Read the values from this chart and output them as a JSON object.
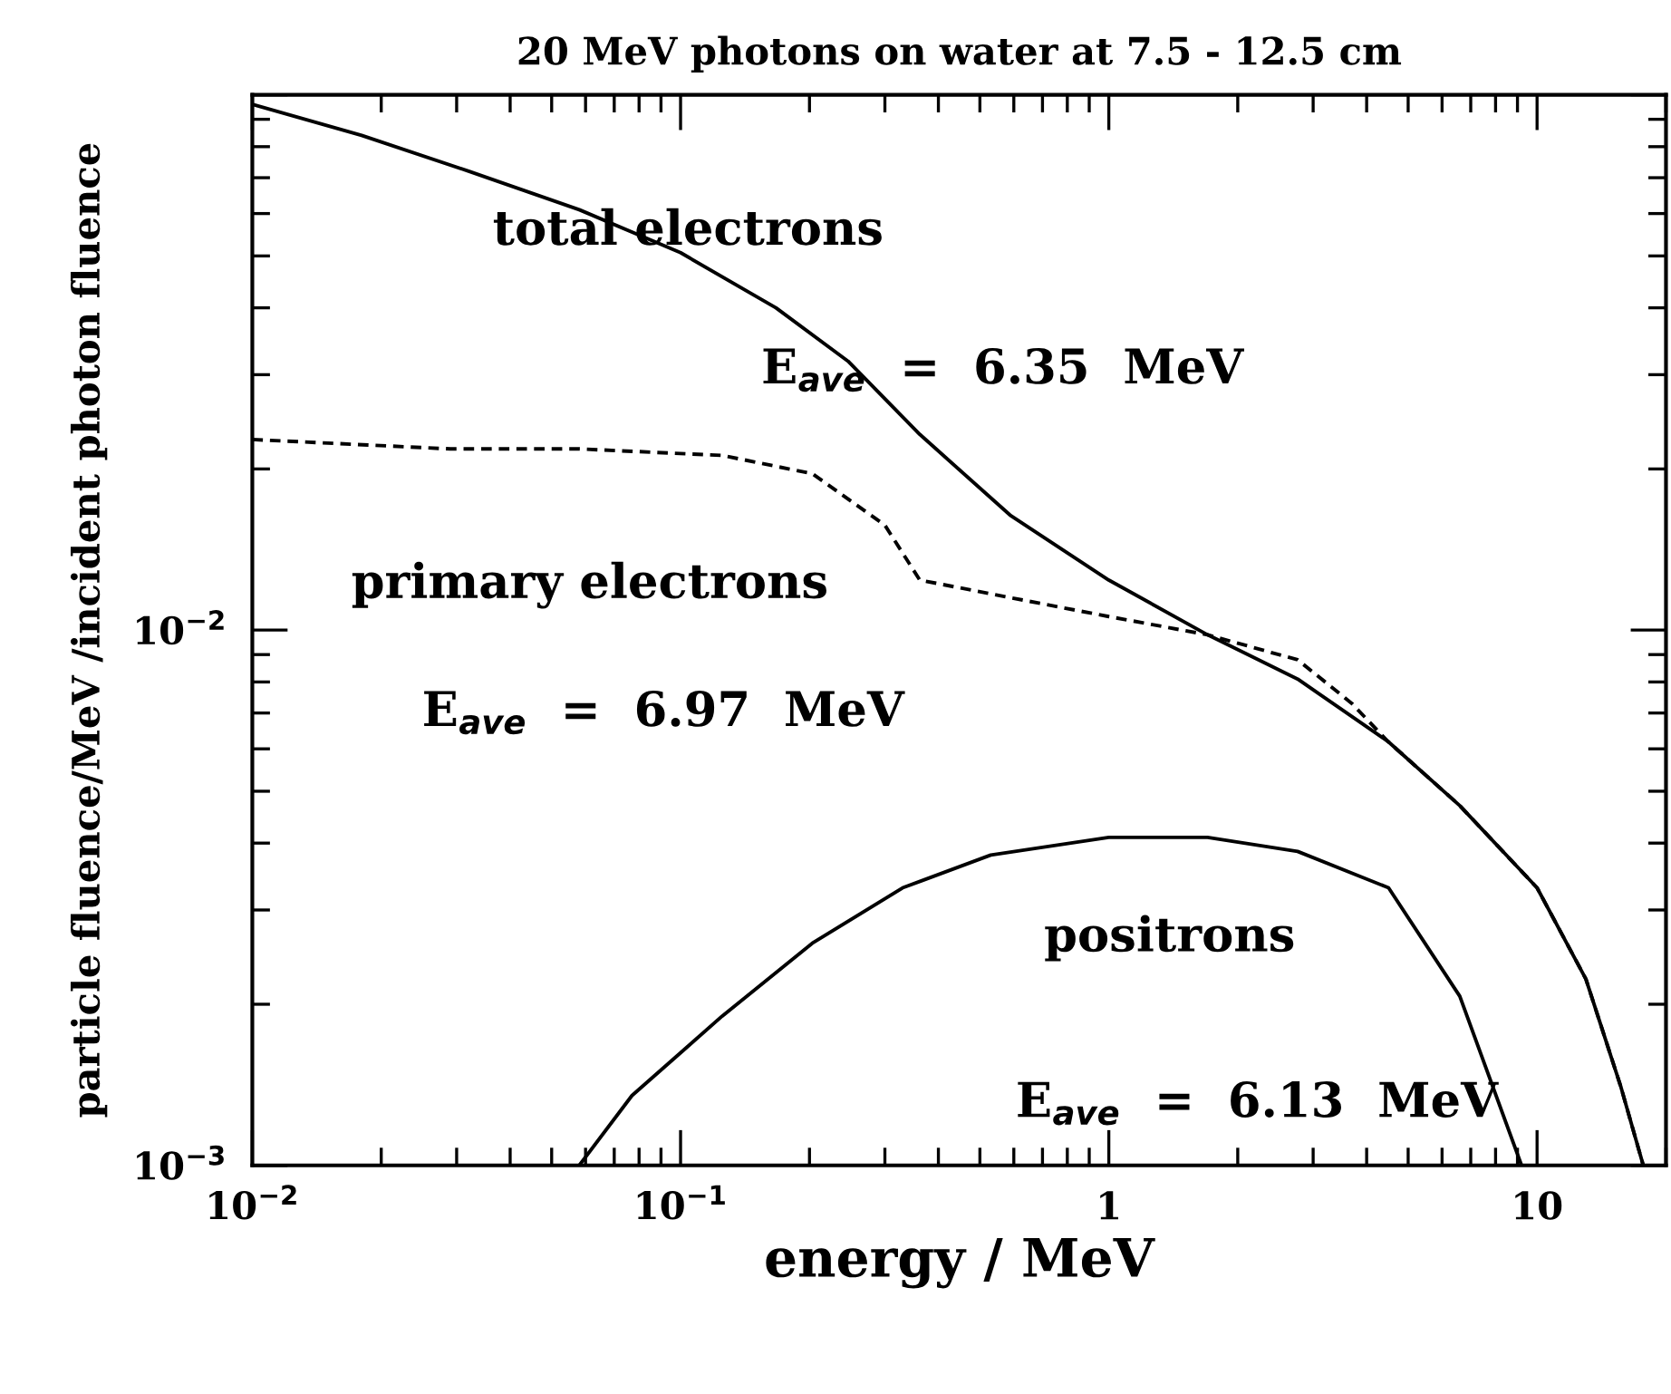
{
  "chart_data": {
    "type": "line",
    "title": "20 MeV photons on water at 7.5 - 12.5 cm",
    "xlabel": "energy / MeV",
    "ylabel": "particle fluence/MeV /incident photon fluence",
    "log": "xy",
    "grid": false,
    "legend": false,
    "xlim": [
      0.01,
      20
    ],
    "ylim": [
      0.001,
      0.1
    ],
    "xticks": [
      {
        "value": 0.01,
        "label": "10$^{−2}$"
      },
      {
        "value": 0.1,
        "label": "10$^{−1}$"
      },
      1,
      10
    ],
    "yticks": [
      {
        "value": 0.001,
        "label": "10$^{−3}$"
      },
      {
        "value": 0.01,
        "label": "10$^{−2}$"
      },
      {
        "value": 0.1,
        "label": null
      }
    ],
    "annotations": [
      "total electrons",
      "E$_{ave}$  =  6.35  MeV",
      "primary electrons",
      "E$_{ave}$  =  6.97  MeV",
      "positrons",
      "E$_{ave}$  =  6.13  MeV"
    ],
    "series": [
      {
        "color": "#000000",
        "line_style": "solid",
        "x": [
          0.01,
          0.018,
          0.032,
          0.058,
          0.1,
          0.167,
          0.246,
          0.362,
          0.588,
          1,
          1.7,
          2.76,
          4.48,
          6.6,
          10,
          13,
          15.7,
          17.7
        ],
        "values": [
          0.096,
          0.084,
          0.072,
          0.061,
          0.0507,
          0.04,
          0.0318,
          0.0232,
          0.0164,
          0.0124,
          0.0098,
          0.0081,
          0.0062,
          0.0047,
          0.0033,
          0.00223,
          0.0014,
          0.001
        ]
      },
      {
        "color": "#000000",
        "line_style": "dashed",
        "x": [
          0.01,
          0.029,
          0.058,
          0.125,
          0.203,
          0.3,
          0.362,
          0.588,
          1,
          1.7,
          2.76,
          3.69,
          4.48,
          6.6,
          10,
          13,
          15.7,
          17.7
        ],
        "values": [
          0.0227,
          0.0218,
          0.0218,
          0.0212,
          0.0196,
          0.0157,
          0.0124,
          0.0115,
          0.0106,
          0.0098,
          0.0088,
          0.0073,
          0.0062,
          0.0047,
          0.0033,
          0.00223,
          0.0014,
          0.001
        ]
      },
      {
        "color": "#000000",
        "line_style": "solid",
        "x": [
          0.058,
          0.077,
          0.125,
          0.203,
          0.33,
          0.53,
          1,
          1.7,
          2.76,
          4.5,
          6.6,
          9.2
        ],
        "values": [
          0.001,
          0.00135,
          0.0019,
          0.0026,
          0.0033,
          0.0038,
          0.0041,
          0.0041,
          0.00386,
          0.0033,
          0.00207,
          0.001
        ]
      }
    ]
  }
}
